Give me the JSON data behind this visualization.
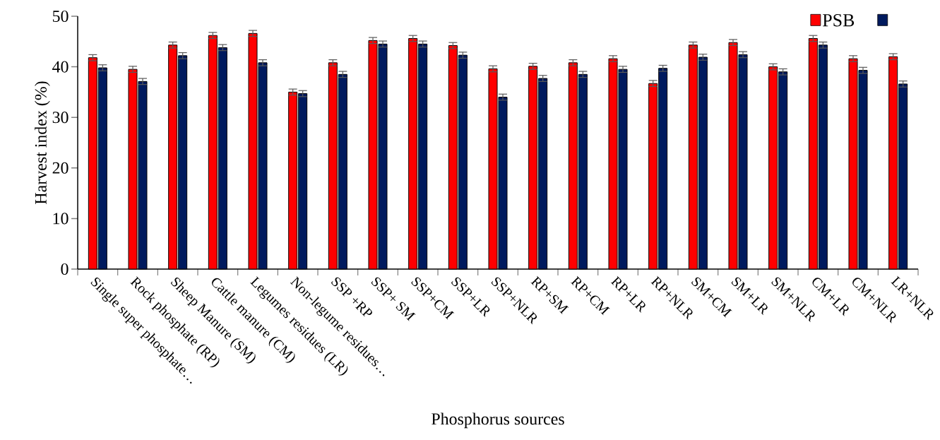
{
  "chart_data": {
    "type": "bar",
    "xlabel": "Phosphorus sources",
    "ylabel": "Harvest index (%)",
    "categories": [
      "Single super phosphate…",
      "Rock phosphate (RP)",
      "Sheep Manure (SM)",
      "Cattle manure (CM)",
      "Legumes residues (LR)",
      "Non-legume residues…",
      "SSP +RP",
      "SSP+ SM",
      "SSP+CM",
      "SSP+LR",
      "SSP+NLR",
      "RP+SM",
      "RP+CM",
      "RP+LR",
      "RP+NLR",
      "SM+CM",
      "SM+LR",
      "SM+NLR",
      "CM+LR",
      "CM+NLR",
      "LR+NLR"
    ],
    "series": [
      {
        "name": "PSB",
        "color": "#ff0000",
        "values": [
          41.8,
          39.5,
          44.3,
          46.2,
          46.6,
          35.0,
          40.8,
          45.2,
          45.6,
          44.2,
          39.6,
          40.1,
          40.8,
          41.6,
          36.7,
          44.3,
          44.8,
          40.0,
          45.6,
          41.6,
          42.0
        ],
        "errors": [
          0.6,
          0.6,
          0.6,
          0.6,
          0.6,
          0.6,
          0.6,
          0.6,
          0.6,
          0.6,
          0.6,
          0.6,
          0.6,
          0.6,
          0.6,
          0.6,
          0.6,
          0.6,
          0.6,
          0.6,
          0.6
        ]
      },
      {
        "color": "#001a5e",
        "values": [
          39.8,
          37.1,
          42.2,
          43.8,
          40.8,
          34.7,
          38.5,
          44.5,
          44.5,
          42.3,
          34.0,
          37.7,
          38.5,
          39.5,
          39.7,
          41.9,
          42.4,
          39.0,
          44.3,
          39.3,
          36.6
        ],
        "errors": [
          0.6,
          0.6,
          0.6,
          0.6,
          0.6,
          0.6,
          0.6,
          0.6,
          0.6,
          0.6,
          0.6,
          0.6,
          0.6,
          0.6,
          0.6,
          0.6,
          0.6,
          0.6,
          0.6,
          0.6,
          0.6
        ]
      }
    ],
    "ylim": [
      0,
      50
    ],
    "yticks": [
      0,
      10,
      20,
      30,
      40,
      50
    ],
    "legend": "top right",
    "grid": false
  }
}
